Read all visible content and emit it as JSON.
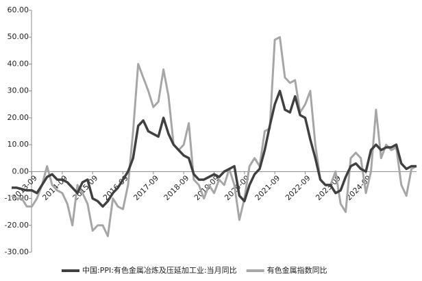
{
  "chart_data": {
    "type": "line",
    "categories": [
      null,
      null,
      null,
      null,
      "2013-09",
      null,
      null,
      null,
      null,
      null,
      "2014-09",
      null,
      null,
      null,
      null,
      null,
      "2015-09",
      null,
      null,
      null,
      null,
      null,
      "2016-09",
      null,
      null,
      null,
      null,
      null,
      "2017-09",
      null,
      null,
      null,
      null,
      null,
      "2018-09",
      null,
      null,
      null,
      null,
      null,
      "2019-09",
      null,
      null,
      null,
      null,
      null,
      "2020-09",
      null,
      null,
      null,
      null,
      null,
      "2021-09",
      null,
      null,
      null,
      null,
      null,
      "2022-09",
      null,
      null,
      null,
      null,
      null,
      "2023-09",
      null,
      null,
      null,
      null,
      null,
      "2024-09",
      null,
      null,
      null,
      null,
      null,
      null,
      null,
      null,
      null,
      null
    ],
    "series": [
      {
        "name": "中国:PPI:有色金属冶炼及压延加工业:当月同比",
        "color": "#404040",
        "values": [
          -6,
          -6,
          -6.5,
          -7,
          -7,
          -8,
          -5,
          -2,
          -1,
          -3,
          -3,
          -4,
          -6,
          -8,
          -4,
          -3,
          -10,
          -11,
          -13,
          -11,
          -8,
          -6,
          -3,
          0,
          5,
          17,
          19,
          15,
          14,
          13,
          20,
          14,
          10,
          8,
          6,
          5,
          -1,
          -3,
          -3,
          -2,
          -1,
          -2,
          0,
          1,
          2,
          -9,
          -11,
          -5,
          -1,
          1,
          8,
          17,
          25,
          30,
          23,
          22,
          28,
          21,
          20,
          12,
          5,
          -3,
          -5,
          -5,
          -8,
          -7,
          -2,
          2,
          3,
          1,
          0,
          8,
          10,
          8,
          9,
          9,
          10,
          3,
          1,
          2,
          2
        ]
      },
      {
        "name": "有色金属指数同比",
        "color": "#a6a6a6",
        "values": [
          -9,
          -10,
          -10,
          -13,
          -13,
          -10,
          -5,
          2,
          -5,
          -7,
          -8,
          -12,
          -20,
          -5,
          -8,
          -12,
          -22,
          -20,
          -20,
          -24,
          -10,
          -13,
          -14,
          -5,
          15,
          40,
          35,
          30,
          24,
          26,
          38,
          28,
          10,
          8,
          10,
          18,
          -3,
          -5,
          -10,
          -5,
          -8,
          -3,
          -5,
          1,
          -5,
          -18,
          -10,
          2,
          5,
          2,
          15,
          16,
          49,
          50,
          35,
          33,
          34,
          22,
          25,
          30,
          10,
          -3,
          -5,
          -5,
          0,
          -12,
          -15,
          5,
          7,
          5,
          -8,
          0,
          23,
          5,
          10,
          8,
          9,
          -5,
          -9,
          1,
          2
        ]
      }
    ],
    "ylim": [
      -30,
      60
    ],
    "yticks": [
      {
        "value": -30,
        "label": "-30.00"
      },
      {
        "value": -20,
        "label": "-20.00"
      },
      {
        "value": -10,
        "label": "-10.00"
      },
      {
        "value": 0,
        "label": "0.00"
      },
      {
        "value": 10,
        "label": "10.00"
      },
      {
        "value": 20,
        "label": "20.00"
      },
      {
        "value": 30,
        "label": "30.00"
      },
      {
        "value": 40,
        "label": "40.00"
      },
      {
        "value": 50,
        "label": "50.00"
      },
      {
        "value": 60,
        "label": "60.00"
      }
    ],
    "grid": false,
    "legend": "bottom"
  }
}
